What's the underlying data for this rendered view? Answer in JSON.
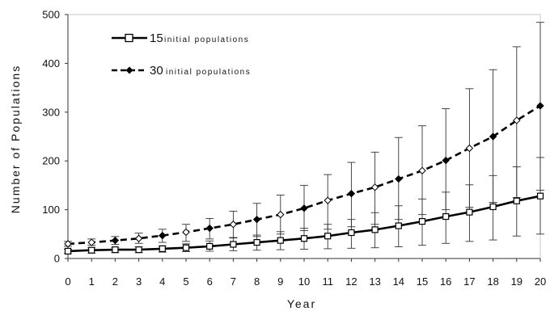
{
  "chart_data": {
    "type": "line",
    "title": "",
    "xlabel": "Year",
    "ylabel": "Number of Populations",
    "xlim": [
      0,
      20
    ],
    "ylim": [
      0,
      500
    ],
    "x": [
      0,
      1,
      2,
      3,
      4,
      5,
      6,
      7,
      8,
      9,
      10,
      11,
      12,
      13,
      14,
      15,
      16,
      17,
      18,
      19,
      20
    ],
    "xticks": [
      "0",
      "1",
      "2",
      "3",
      "4",
      "5",
      "6",
      "7",
      "8",
      "9",
      "10",
      "11",
      "12",
      "13",
      "14",
      "15",
      "16",
      "17",
      "18",
      "19",
      "20"
    ],
    "yticks": [
      "0",
      "100",
      "200",
      "300",
      "400",
      "500"
    ],
    "grid": false,
    "legend_position": "top-left",
    "series": [
      {
        "name": "15 initial populations",
        "legend_number": "15",
        "legend_text": "initial populations",
        "line_style": "solid",
        "marker": "square",
        "color": "#000000",
        "values": [
          15,
          17,
          18,
          18,
          20,
          22,
          25,
          29,
          33,
          37,
          41,
          46,
          53,
          59,
          67,
          76,
          86,
          95,
          106,
          118,
          128
        ],
        "error_low": [
          10,
          11,
          12,
          12,
          13,
          14,
          15,
          16,
          17,
          18,
          19,
          20,
          21,
          22,
          24,
          27,
          31,
          35,
          38,
          46,
          50
        ],
        "error_high": [
          19,
          22,
          23,
          24,
          26,
          30,
          36,
          42,
          48,
          55,
          62,
          70,
          80,
          94,
          108,
          122,
          136,
          151,
          170,
          188,
          207
        ]
      },
      {
        "name": "30 initial populations",
        "legend_number": "30",
        "legend_text": "initial populations",
        "line_style": "dashed",
        "marker": "diamond",
        "color": "#000000",
        "values": [
          30,
          33,
          37,
          41,
          47,
          54,
          62,
          70,
          80,
          90,
          103,
          119,
          133,
          146,
          163,
          180,
          201,
          226,
          250,
          283,
          313
        ],
        "error_low": [
          25,
          27,
          29,
          31,
          33,
          35,
          40,
          43,
          45,
          50,
          57,
          60,
          65,
          70,
          80,
          90,
          100,
          105,
          115,
          125,
          140
        ],
        "error_high": [
          35,
          40,
          45,
          52,
          60,
          70,
          82,
          97,
          113,
          130,
          150,
          172,
          197,
          218,
          248,
          272,
          307,
          348,
          387,
          434,
          484
        ]
      }
    ]
  }
}
